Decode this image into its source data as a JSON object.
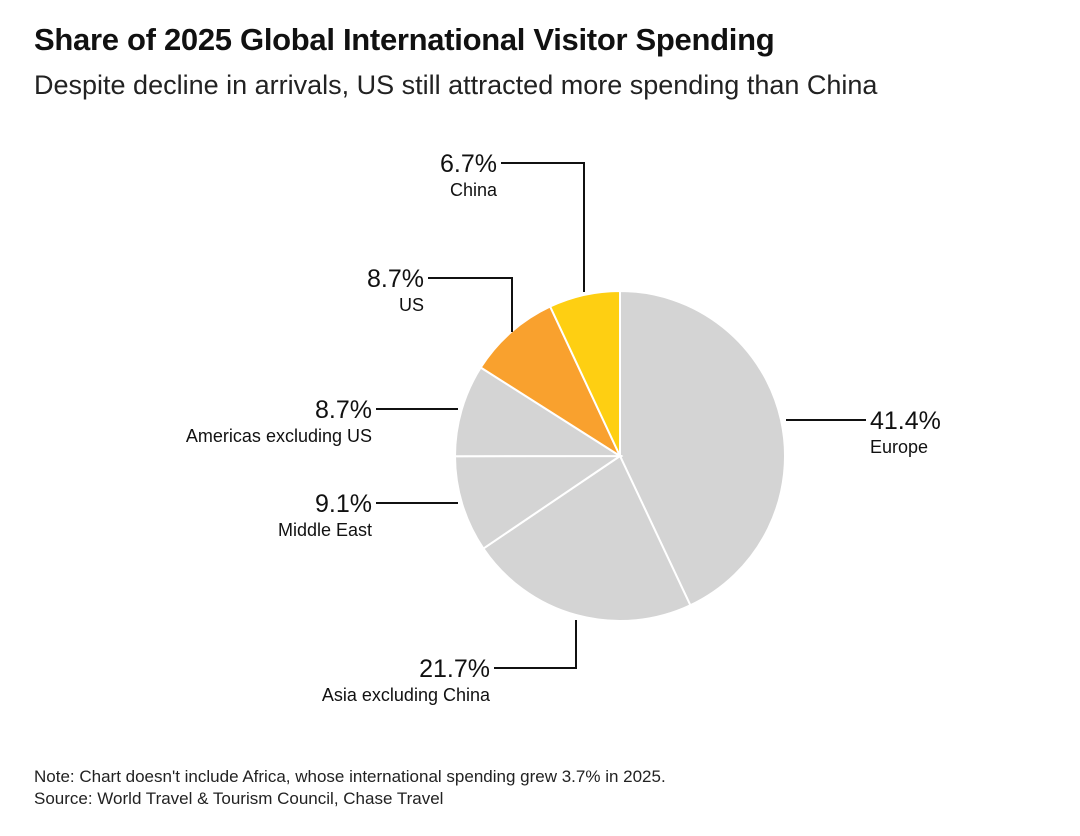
{
  "header": {
    "title": "Share of 2025 Global International Visitor Spending",
    "subtitle": "Despite decline in arrivals, US still attracted more spending than China"
  },
  "chart_data": {
    "type": "pie",
    "title": "Share of 2025 Global International Visitor Spending",
    "subtitle": "Despite decline in arrivals, US still attracted more spending than China",
    "unit": "%",
    "slices": [
      {
        "name": "Europe",
        "value": 41.4,
        "label": "41.4%",
        "color": "#d4d4d4"
      },
      {
        "name": "Asia excluding China",
        "value": 21.7,
        "label": "21.7%",
        "color": "#d4d4d4"
      },
      {
        "name": "Middle East",
        "value": 9.1,
        "label": "9.1%",
        "color": "#d4d4d4"
      },
      {
        "name": "Americas excluding US",
        "value": 8.7,
        "label": "8.7%",
        "color": "#d4d4d4"
      },
      {
        "name": "US",
        "value": 8.7,
        "label": "8.7%",
        "color": "#f9a12e"
      },
      {
        "name": "China",
        "value": 6.7,
        "label": "6.7%",
        "color": "#fecf12"
      }
    ],
    "excluded_note": "Africa not included"
  },
  "footer": {
    "note": "Note: Chart doesn't include Africa, whose international spending grew 3.7% in 2025.",
    "source": "Source: World Travel & Tourism Council, Chase Travel"
  },
  "colors": {
    "default_slice": "#d4d4d4",
    "highlight_us": "#f9a12e",
    "highlight_china": "#fecf12",
    "leader_line": "#111111",
    "slice_border": "#ffffff"
  }
}
